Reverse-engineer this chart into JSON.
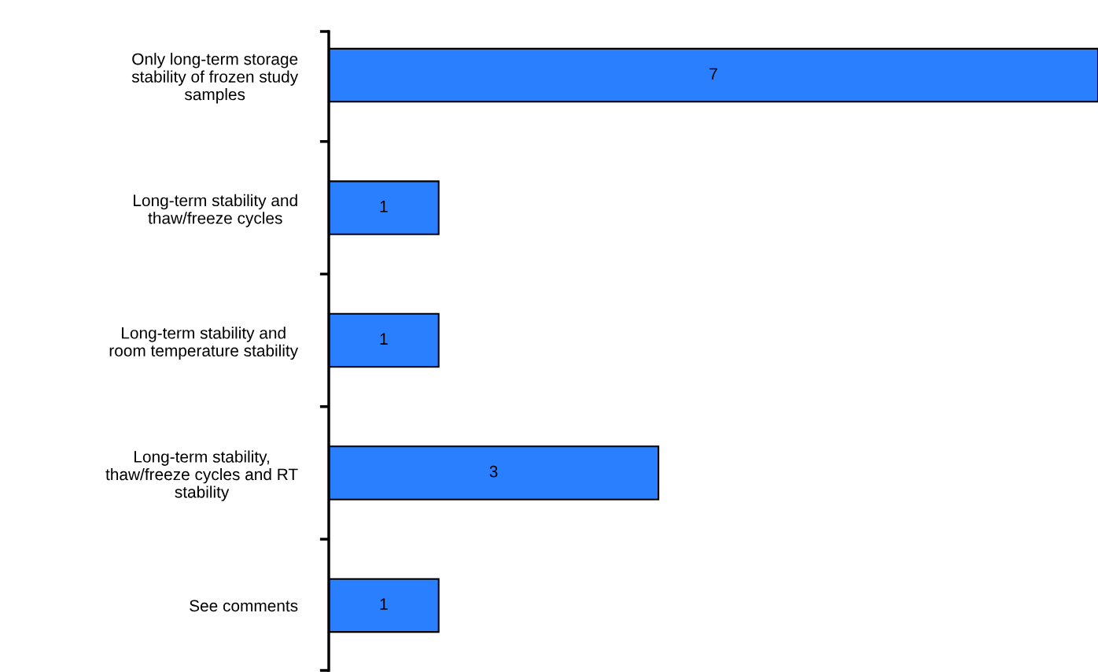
{
  "chart_data": {
    "type": "bar",
    "orientation": "horizontal",
    "categories": [
      "Only long-term storage\nstability of frozen study\nsamples",
      "Long-term stability and\nthaw/freeze cycles",
      "Long-term stability and\nroom temperature stability",
      "Long-term stability,\nthaw/freeze cycles and RT\nstability",
      "See comments"
    ],
    "values": [
      7,
      1,
      1,
      3,
      1
    ],
    "color": "#2a7fff",
    "tick_labels": "y",
    "data_labels": true,
    "grid": false,
    "legend": false
  }
}
